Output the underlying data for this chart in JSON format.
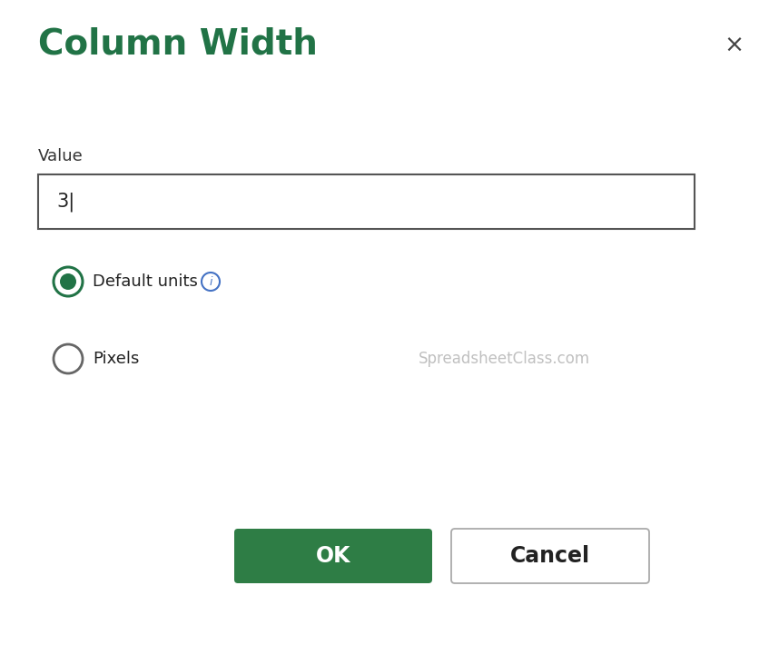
{
  "title": "Column Width",
  "title_color": "#217346",
  "title_fontsize": 28,
  "bg_color": "#ffffff",
  "close_x_color": "#444444",
  "value_label": "Value",
  "value_label_fontsize": 13,
  "input_value": "3|",
  "input_fontsize": 15,
  "input_box_edge": "#555555",
  "radio1_label": "Default units",
  "radio2_label": "Pixels",
  "radio_selected_fill": "#217346",
  "radio_selected_border": "#217346",
  "radio_unselected_fill": "#ffffff",
  "radio_unselected_border": "#666666",
  "radio_fontsize": 13,
  "info_icon_color": "#4472c4",
  "watermark_text": "SpreadsheetClass.com",
  "watermark_color": "#c0c0c0",
  "watermark_fontsize": 12,
  "ok_label": "OK",
  "ok_bg": "#2e7d45",
  "ok_text_color": "#ffffff",
  "ok_fontsize": 17,
  "cancel_label": "Cancel",
  "cancel_bg": "#ffffff",
  "cancel_border": "#aaaaaa",
  "cancel_text_color": "#222222",
  "cancel_fontsize": 17,
  "figw": 8.47,
  "figh": 7.21,
  "dpi": 100
}
